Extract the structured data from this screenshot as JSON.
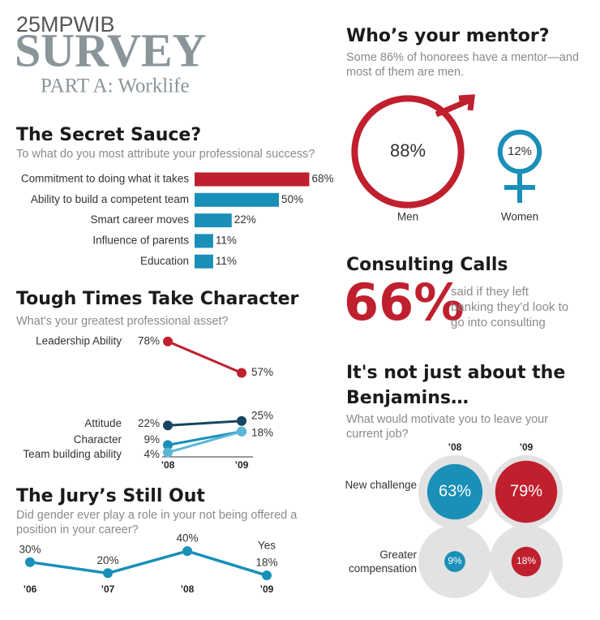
{
  "header": {
    "line1": "25MPWIB",
    "line2": "SURVEY",
    "line3": "PART A: Worklife"
  },
  "chart_data": [
    {
      "type": "bar",
      "title": "The Secret Sauce?",
      "subtitle": "To what do you most attribute your professional success?",
      "categories": [
        "Commitment to doing what it takes",
        "Ability to build a competent team",
        "Smart career moves",
        "Influence of parents",
        "Education"
      ],
      "values": [
        68,
        50,
        22,
        11,
        11
      ],
      "value_labels": [
        "68%",
        "50%",
        "22%",
        "11%",
        "11%"
      ],
      "colors": [
        "#c0202e",
        "#1a8fb8",
        "#1a8fb8",
        "#1a8fb8",
        "#1a8fb8"
      ]
    },
    {
      "type": "slope",
      "title": "Tough Times Take Character",
      "subtitle": "What's your greatest professional asset?",
      "categories": [
        "’08",
        "’09"
      ],
      "series": [
        {
          "name": "Leadership Ability",
          "color": "#c0202e",
          "values": [
            78,
            57
          ],
          "value_labels": [
            "78%",
            "57%"
          ]
        },
        {
          "name": "Attitude",
          "color": "#16455f",
          "values": [
            22,
            25
          ],
          "value_labels": [
            "22%",
            "25%"
          ]
        },
        {
          "name": "Character",
          "color": "#1a8fb8",
          "values": [
            9,
            18
          ],
          "value_labels": [
            "9%",
            "18%"
          ]
        },
        {
          "name": "Team building ability",
          "color": "#5ab8d6",
          "values": [
            4,
            18
          ],
          "value_labels": [
            "4%",
            null
          ]
        }
      ]
    },
    {
      "type": "line",
      "title": "The Jury’s Still Out",
      "subtitle": "Did gender ever play a role in your not being offered a position in your career?",
      "categories": [
        "’06",
        "’07",
        "’08",
        "’09"
      ],
      "series": [
        {
          "name": "Yes",
          "color": "#1a8fb8",
          "values": [
            30,
            20,
            40,
            18
          ],
          "value_labels": [
            "30%",
            "20%",
            "40%",
            "18%"
          ]
        }
      ]
    },
    {
      "type": "symbol",
      "title": "Who’s your mentor?",
      "subtitle": "Some 86% of honorees have a mentor—and most of them are men.",
      "categories": [
        "Men",
        "Women"
      ],
      "values": [
        88,
        12
      ],
      "value_labels": [
        "88%",
        "12%"
      ],
      "colors": [
        "#c0202e",
        "#1a8fb8"
      ]
    },
    {
      "type": "stat",
      "title": "Consulting Calls",
      "value": 66,
      "value_label": "66%",
      "text": "said if they left banking they’d look to go into consulting",
      "color": "#c0202e"
    },
    {
      "type": "bubble",
      "title": "It's not just about the Benjamins…",
      "subtitle": "What would motivate you to leave your current job?",
      "categories": [
        "New challenge",
        "Greater compensation"
      ],
      "series": [
        {
          "name": "’08",
          "color": "#1a8fb8",
          "values": [
            63,
            9
          ],
          "value_labels": [
            "63%",
            "9%"
          ]
        },
        {
          "name": "’09",
          "color": "#c0202e",
          "values": [
            79,
            18
          ],
          "value_labels": [
            "79%",
            "18%"
          ]
        }
      ]
    }
  ]
}
